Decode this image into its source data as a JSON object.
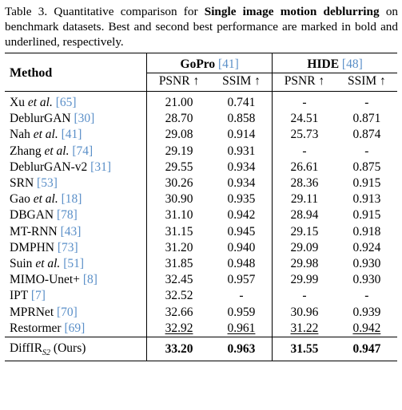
{
  "caption": {
    "label": "Table 3. Quantitative comparison for ",
    "bold": "Single image motion deblurring",
    "rest": " on benchmark datasets. Best and second best performance are marked in bold and underlined, respectively."
  },
  "header": {
    "method": "Method",
    "groups": [
      {
        "name": "GoPro",
        "ref": "[41]"
      },
      {
        "name": "HIDE",
        "ref": "[48]"
      }
    ],
    "cols": [
      "PSNR ↑",
      "SSIM ↑",
      "PSNR ↑",
      "SSIM ↑"
    ]
  },
  "rows": [
    {
      "name": "Xu ",
      "etal": "et al.",
      "ref": " [65]",
      "vals": [
        "21.00",
        "0.741",
        "-",
        "-"
      ]
    },
    {
      "name": "DeblurGAN",
      "etal": "",
      "ref": " [30]",
      "vals": [
        "28.70",
        "0.858",
        "24.51",
        "0.871"
      ]
    },
    {
      "name": "Nah ",
      "etal": "et al.",
      "ref": " [41]",
      "vals": [
        "29.08",
        "0.914",
        "25.73",
        "0.874"
      ]
    },
    {
      "name": "Zhang ",
      "etal": "et al.",
      "ref": " [74]",
      "vals": [
        "29.19",
        "0.931",
        "-",
        "-"
      ]
    },
    {
      "name": "DeblurGAN-v2",
      "etal": "",
      "ref": " [31]",
      "vals": [
        "29.55",
        "0.934",
        "26.61",
        "0.875"
      ]
    },
    {
      "name": "SRN",
      "etal": "",
      "ref": " [53]",
      "vals": [
        "30.26",
        "0.934",
        "28.36",
        "0.915"
      ]
    },
    {
      "name": "Gao ",
      "etal": "et al.",
      "ref": " [18]",
      "vals": [
        "30.90",
        "0.935",
        "29.11",
        "0.913"
      ]
    },
    {
      "name": "DBGAN",
      "etal": "",
      "ref": " [78]",
      "vals": [
        "31.10",
        "0.942",
        "28.94",
        "0.915"
      ]
    },
    {
      "name": "MT-RNN",
      "etal": "",
      "ref": " [43]",
      "vals": [
        "31.15",
        "0.945",
        "29.15",
        "0.918"
      ]
    },
    {
      "name": "DMPHN",
      "etal": "",
      "ref": " [73]",
      "vals": [
        "31.20",
        "0.940",
        "29.09",
        "0.924"
      ]
    },
    {
      "name": "Suin ",
      "etal": "et al.",
      "ref": " [51]",
      "vals": [
        "31.85",
        "0.948",
        "29.98",
        "0.930"
      ]
    },
    {
      "name": "MIMO-Unet+",
      "etal": "",
      "ref": " [8]",
      "vals": [
        "32.45",
        "0.957",
        "29.99",
        "0.930"
      ]
    },
    {
      "name": "IPT",
      "etal": "",
      "ref": " [7]",
      "vals": [
        "32.52",
        "-",
        "-",
        "-"
      ]
    },
    {
      "name": "MPRNet",
      "etal": "",
      "ref": " [70]",
      "vals": [
        "32.66",
        "0.959",
        "30.96",
        "0.939"
      ]
    },
    {
      "name": "Restormer",
      "etal": "",
      "ref": " [69]",
      "vals": [
        "32.92",
        "0.961",
        "31.22",
        "0.942"
      ],
      "underline": true
    }
  ],
  "ours": {
    "name": "DiffIR",
    "sub": "S2",
    "suffix": " (Ours)",
    "vals": [
      "33.20",
      "0.963",
      "31.55",
      "0.947"
    ]
  }
}
